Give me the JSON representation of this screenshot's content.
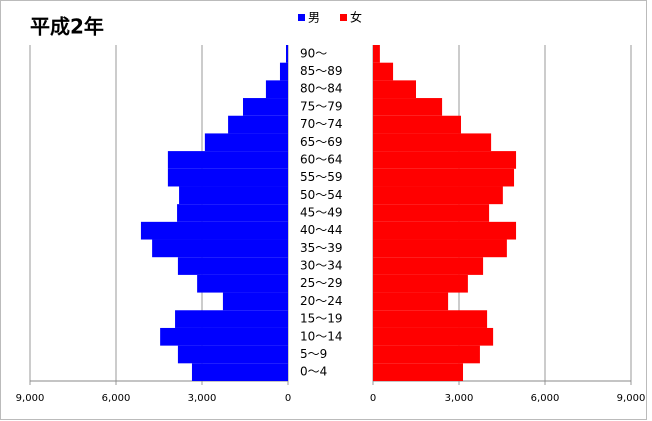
{
  "chart_data": {
    "type": "pyramid",
    "title": "平成2年",
    "categories": [
      "0～4",
      "5～9",
      "10～14",
      "15～19",
      "20～24",
      "25～29",
      "30～34",
      "35～39",
      "40～44",
      "45～49",
      "50～54",
      "55～59",
      "60～64",
      "65～69",
      "70～74",
      "75～79",
      "80～84",
      "85～89",
      "90～"
    ],
    "series": [
      {
        "name": "男",
        "color": "#0000ff",
        "xlim": [
          9000,
          0
        ],
        "xticks": [
          {
            "value": 9000,
            "label": "9,000"
          },
          {
            "value": 6000,
            "label": "6,000"
          },
          {
            "value": 3000,
            "label": "3,000"
          },
          0
        ],
        "values": [
          3350,
          3840,
          4460,
          3940,
          2270,
          3170,
          3840,
          4740,
          5130,
          3870,
          3800,
          4190,
          4190,
          2900,
          2090,
          1570,
          770,
          280,
          70
        ]
      },
      {
        "name": "女",
        "color": "#ff0000",
        "xlim": [
          0,
          9000
        ],
        "xticks": [
          0,
          {
            "value": 3000,
            "label": "3,000"
          },
          {
            "value": 6000,
            "label": "6,000"
          },
          {
            "value": 9000,
            "label": "9,000"
          }
        ],
        "values": [
          3140,
          3730,
          4190,
          3980,
          2620,
          3310,
          3840,
          4670,
          4990,
          4050,
          4530,
          4920,
          4990,
          4120,
          3070,
          2410,
          1500,
          700,
          240
        ]
      }
    ],
    "grid": true
  }
}
